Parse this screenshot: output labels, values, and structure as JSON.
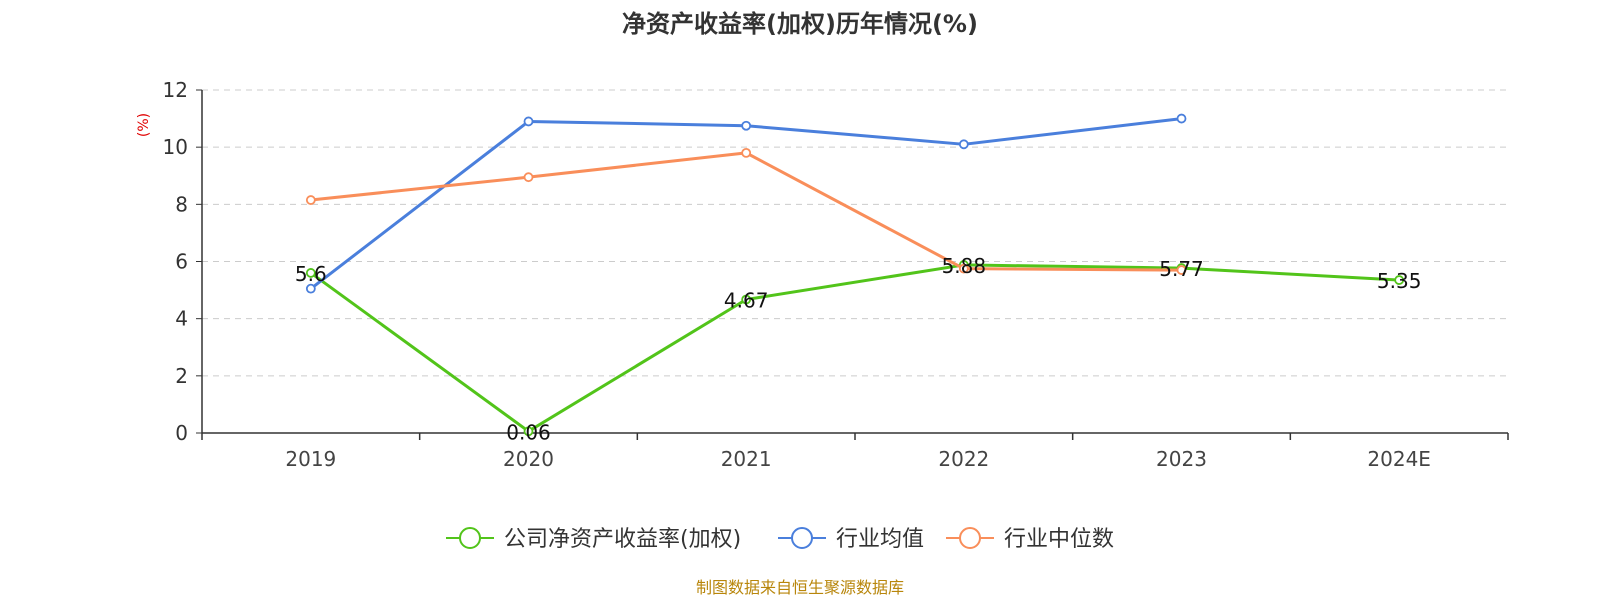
{
  "chart_data": {
    "type": "line",
    "title": "净资产收益率(加权)历年情况(%)",
    "ylabel": "(%)",
    "xlabel": "",
    "ylim": [
      0,
      12
    ],
    "yticks": [
      0,
      2,
      4,
      6,
      8,
      10,
      12
    ],
    "categories": [
      "2019",
      "2020",
      "2021",
      "2022",
      "2023",
      "2024E"
    ],
    "grid": true,
    "legend_position": "bottom-center",
    "series": [
      {
        "name": "公司净资产收益率(加权)",
        "color": "#52c41a",
        "values": [
          5.6,
          0.06,
          4.67,
          5.88,
          5.77,
          5.35
        ],
        "labels": [
          "5.6",
          "0.06",
          "4.67",
          "5.88",
          "5.77",
          "5.35"
        ]
      },
      {
        "name": "行业均值",
        "color": "#4a7fdc",
        "values": [
          5.05,
          10.9,
          10.75,
          10.1,
          11.0,
          null
        ],
        "labels": null
      },
      {
        "name": "行业中位数",
        "color": "#f98e5a",
        "values": [
          8.15,
          8.95,
          9.8,
          5.75,
          5.7,
          null
        ],
        "labels": null
      }
    ],
    "source": "制图数据来自恒生聚源数据库"
  }
}
